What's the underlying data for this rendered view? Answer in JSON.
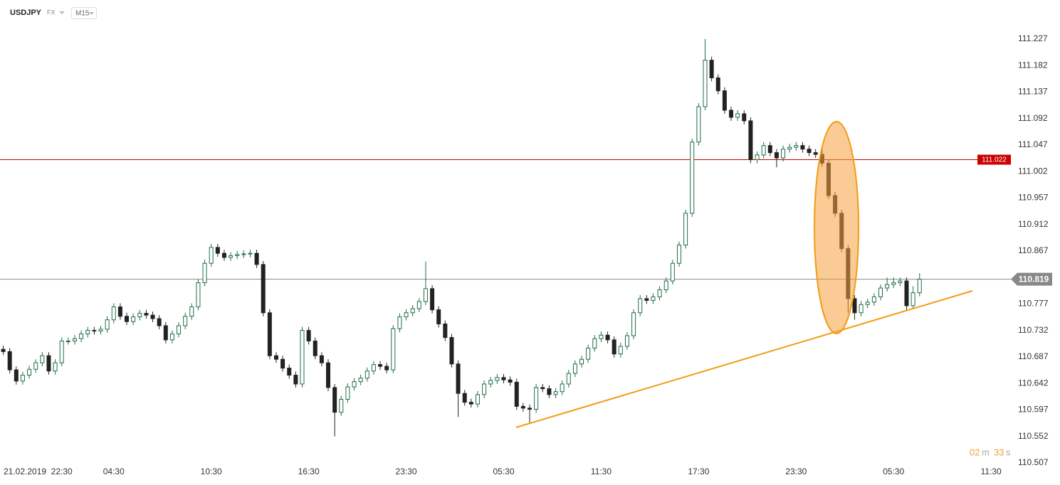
{
  "header": {
    "symbol": "USDJPY",
    "market": "FX",
    "interval": "M15",
    "countdown": {
      "minutes": "02",
      "minute_unit": "m",
      "seconds": "33",
      "second_unit": "s"
    }
  },
  "chart_data": {
    "type": "candlestick",
    "date_label": "21.02.2019",
    "up_color": "#1f6e43",
    "down_color": "#222222",
    "xlim": [
      -0.5,
      154.5
    ],
    "xticks": [
      {
        "value": 9,
        "label": "22:30"
      },
      {
        "value": 17,
        "label": "04:30"
      },
      {
        "value": 32,
        "label": "10:30"
      },
      {
        "value": 47,
        "label": "16:30"
      },
      {
        "value": 62,
        "label": "23:30"
      },
      {
        "value": 77,
        "label": "05:30"
      },
      {
        "value": 92,
        "label": "11:30"
      },
      {
        "value": 107,
        "label": "17:30"
      },
      {
        "value": 122,
        "label": "23:30"
      },
      {
        "value": 137,
        "label": "05:30"
      },
      {
        "value": 152,
        "label": "11:30"
      }
    ],
    "ylim": [
      110.496,
      111.257
    ],
    "yticks": [
      111.227,
      111.182,
      111.137,
      111.092,
      111.047,
      111.002,
      110.957,
      110.912,
      110.867,
      110.777,
      110.732,
      110.687,
      110.642,
      110.597,
      110.552,
      110.507
    ],
    "levels": [
      {
        "value": 111.022,
        "color": "#cc0000"
      },
      {
        "value": 110.819,
        "color": "#888888"
      }
    ],
    "open": [
      110.7,
      110.696,
      110.665,
      110.646,
      110.656,
      110.666,
      110.677,
      110.689,
      110.663,
      110.677,
      110.714,
      110.714,
      110.718,
      110.726,
      110.732,
      110.731,
      110.734,
      110.75,
      110.772,
      110.756,
      110.747,
      110.755,
      110.761,
      110.758,
      110.752,
      110.74,
      110.716,
      110.726,
      110.74,
      110.756,
      110.772,
      110.813,
      110.846,
      110.873,
      110.863,
      110.856,
      110.859,
      110.861,
      110.862,
      110.863,
      110.844,
      110.762,
      110.689,
      110.683,
      110.668,
      110.656,
      110.641,
      110.732,
      110.714,
      110.689,
      110.677,
      110.635,
      110.593,
      110.615,
      110.636,
      110.645,
      110.651,
      110.663,
      110.674,
      110.671,
      110.665,
      110.735,
      110.755,
      110.762,
      110.769,
      110.781,
      110.803,
      110.767,
      110.743,
      110.72,
      110.675,
      110.625,
      110.61,
      110.607,
      110.623,
      110.641,
      110.647,
      110.652,
      110.648,
      110.644,
      110.603,
      110.6,
      110.598,
      110.635,
      110.633,
      110.623,
      110.628,
      110.641,
      110.659,
      110.675,
      110.683,
      110.702,
      110.718,
      110.724,
      110.716,
      110.692,
      110.705,
      110.723,
      110.762,
      110.786,
      110.783,
      110.789,
      110.801,
      110.816,
      110.846,
      110.877,
      110.931,
      111.052,
      111.112,
      111.191,
      111.161,
      111.139,
      111.106,
      111.094,
      111.1,
      111.088,
      111.022,
      111.03,
      111.046,
      111.034,
      111.025,
      111.04,
      111.043,
      111.046,
      111.04,
      111.034,
      111.031,
      111.016,
      110.961,
      110.931,
      110.871,
      110.786,
      110.762,
      110.776,
      110.78,
      110.789,
      110.804,
      110.81,
      110.813,
      110.816,
      110.774,
      110.796
    ],
    "high": [
      110.706,
      110.702,
      110.671,
      110.662,
      110.672,
      110.683,
      110.695,
      110.695,
      110.683,
      110.72,
      110.72,
      110.724,
      110.732,
      110.738,
      110.738,
      110.74,
      110.756,
      110.778,
      110.778,
      110.762,
      110.761,
      110.767,
      110.767,
      110.764,
      110.758,
      110.746,
      110.732,
      110.746,
      110.762,
      110.778,
      110.819,
      110.852,
      110.879,
      110.879,
      110.869,
      110.865,
      110.867,
      110.868,
      110.869,
      110.869,
      110.85,
      110.768,
      110.695,
      110.689,
      110.674,
      110.662,
      110.738,
      110.738,
      110.72,
      110.695,
      110.683,
      110.641,
      110.621,
      110.642,
      110.651,
      110.657,
      110.669,
      110.68,
      110.68,
      110.677,
      110.741,
      110.761,
      110.768,
      110.775,
      110.787,
      110.849,
      110.809,
      110.773,
      110.749,
      110.726,
      110.681,
      110.631,
      110.616,
      110.629,
      110.647,
      110.653,
      110.658,
      110.658,
      110.654,
      110.65,
      110.609,
      110.606,
      110.641,
      110.641,
      110.639,
      110.634,
      110.647,
      110.665,
      110.681,
      110.689,
      110.708,
      110.724,
      110.73,
      110.73,
      110.722,
      110.711,
      110.729,
      110.768,
      110.792,
      110.792,
      110.795,
      110.807,
      110.822,
      110.852,
      110.883,
      110.937,
      111.058,
      111.118,
      111.227,
      111.197,
      111.167,
      111.145,
      111.112,
      111.106,
      111.106,
      111.094,
      111.036,
      111.052,
      111.052,
      111.04,
      111.046,
      111.049,
      111.052,
      111.052,
      111.046,
      111.04,
      111.046,
      111.022,
      110.967,
      110.937,
      110.877,
      110.792,
      110.782,
      110.786,
      110.795,
      110.81,
      110.822,
      110.822,
      110.822,
      110.822,
      110.807,
      110.829
    ],
    "low": [
      110.69,
      110.659,
      110.64,
      110.64,
      110.65,
      110.66,
      110.671,
      110.657,
      110.657,
      110.671,
      110.708,
      110.708,
      110.712,
      110.72,
      110.725,
      110.725,
      110.728,
      110.744,
      110.75,
      110.741,
      110.741,
      110.749,
      110.752,
      110.746,
      110.734,
      110.71,
      110.71,
      110.72,
      110.734,
      110.75,
      110.766,
      110.807,
      110.84,
      110.857,
      110.85,
      110.85,
      110.853,
      110.855,
      110.856,
      110.838,
      110.756,
      110.683,
      110.677,
      110.662,
      110.65,
      110.635,
      110.635,
      110.708,
      110.683,
      110.671,
      110.629,
      110.552,
      110.587,
      110.609,
      110.63,
      110.639,
      110.645,
      110.657,
      110.665,
      110.659,
      110.659,
      110.729,
      110.749,
      110.756,
      110.763,
      110.775,
      110.761,
      110.737,
      110.714,
      110.669,
      110.585,
      110.604,
      110.601,
      110.601,
      110.617,
      110.635,
      110.641,
      110.642,
      110.638,
      110.597,
      110.594,
      110.575,
      110.592,
      110.627,
      110.617,
      110.617,
      110.622,
      110.635,
      110.653,
      110.669,
      110.677,
      110.696,
      110.712,
      110.71,
      110.686,
      110.686,
      110.699,
      110.717,
      110.756,
      110.777,
      110.777,
      110.783,
      110.795,
      110.81,
      110.84,
      110.871,
      110.925,
      111.046,
      111.106,
      111.155,
      111.133,
      111.1,
      111.088,
      111.088,
      111.082,
      111.016,
      111.016,
      111.024,
      111.028,
      111.009,
      111.019,
      111.034,
      111.037,
      111.034,
      111.028,
      111.025,
      111.01,
      110.955,
      110.925,
      110.865,
      110.762,
      110.75,
      110.756,
      110.77,
      110.774,
      110.783,
      110.798,
      110.804,
      110.807,
      110.766,
      110.768,
      110.79
    ],
    "close": [
      110.696,
      110.665,
      110.646,
      110.656,
      110.666,
      110.677,
      110.689,
      110.663,
      110.677,
      110.714,
      110.714,
      110.718,
      110.726,
      110.732,
      110.731,
      110.734,
      110.75,
      110.772,
      110.756,
      110.747,
      110.755,
      110.761,
      110.758,
      110.752,
      110.74,
      110.716,
      110.726,
      110.74,
      110.756,
      110.772,
      110.813,
      110.846,
      110.873,
      110.863,
      110.856,
      110.859,
      110.861,
      110.862,
      110.863,
      110.844,
      110.762,
      110.689,
      110.683,
      110.668,
      110.656,
      110.641,
      110.732,
      110.714,
      110.689,
      110.677,
      110.635,
      110.593,
      110.615,
      110.636,
      110.645,
      110.651,
      110.663,
      110.674,
      110.671,
      110.665,
      110.735,
      110.755,
      110.762,
      110.769,
      110.781,
      110.803,
      110.767,
      110.743,
      110.72,
      110.675,
      110.625,
      110.61,
      110.607,
      110.623,
      110.641,
      110.647,
      110.652,
      110.648,
      110.644,
      110.603,
      110.6,
      110.598,
      110.635,
      110.633,
      110.623,
      110.628,
      110.641,
      110.659,
      110.675,
      110.683,
      110.702,
      110.718,
      110.724,
      110.716,
      110.692,
      110.705,
      110.723,
      110.762,
      110.786,
      110.783,
      110.789,
      110.801,
      110.816,
      110.846,
      110.877,
      110.931,
      111.052,
      111.112,
      111.191,
      111.161,
      111.139,
      111.106,
      111.094,
      111.1,
      111.088,
      111.022,
      111.03,
      111.046,
      111.034,
      111.025,
      111.04,
      111.043,
      111.046,
      111.04,
      111.034,
      111.031,
      111.016,
      110.961,
      110.931,
      110.871,
      110.786,
      110.762,
      110.776,
      110.78,
      110.789,
      110.804,
      110.81,
      110.813,
      110.816,
      110.774,
      110.796,
      110.819
    ]
  }
}
